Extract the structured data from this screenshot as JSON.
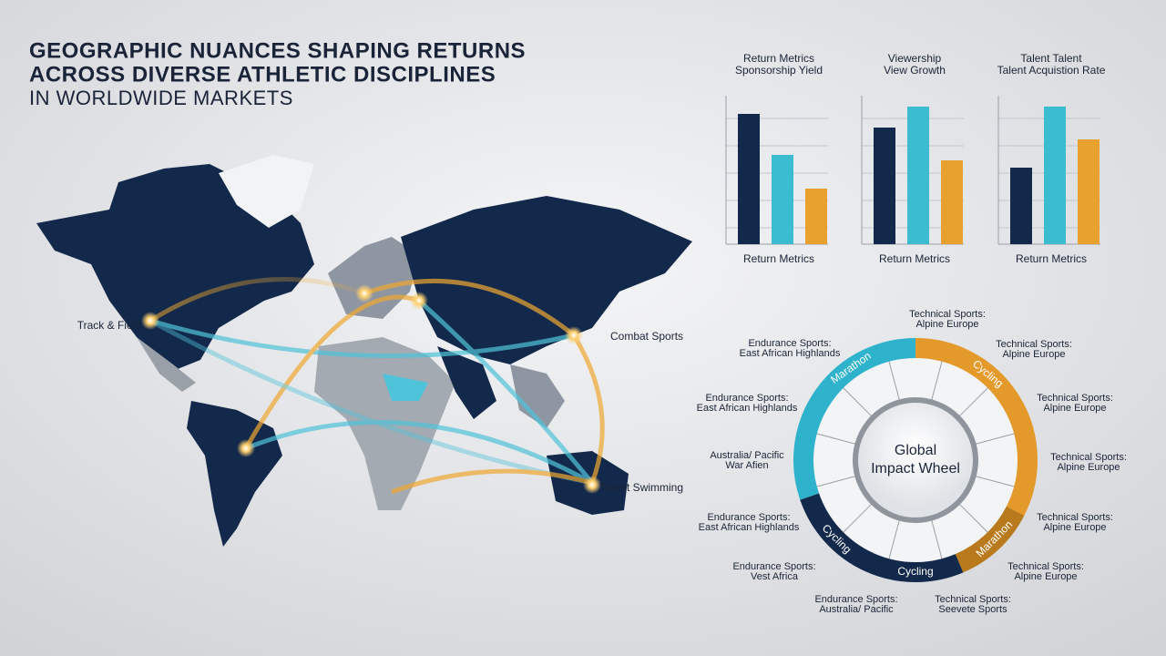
{
  "header": {
    "title_lines": [
      "GEOGRAPHIC NUANCES SHAPING RETURNS",
      "ACROSS DIVERSE ATHLETIC DISCIPLINES",
      "IN WORLDWIDE MARKETS"
    ]
  },
  "map": {
    "hubs": [
      "Track & Field",
      "Combat Sports",
      "Tahert Swimming"
    ]
  },
  "bar_panels": [
    {
      "title_lines": [
        "Return Metrics",
        "Sponsorship Yield"
      ],
      "label": "Return Metrics",
      "values": [
        143,
        98,
        61
      ]
    },
    {
      "title_lines": [
        "Viewership",
        "View Growth"
      ],
      "label": "Return Metrics",
      "values": [
        128,
        151,
        92
      ]
    },
    {
      "title_lines": [
        "Talent Talent",
        "Talent Acquistion Rate"
      ],
      "label": "Return Metrics",
      "values": [
        84,
        151,
        115
      ]
    }
  ],
  "wheel": {
    "center_lines": [
      "Global",
      "Impact Wheel"
    ],
    "ring_labels": [
      "Marathon",
      "Cycling",
      "Marathon",
      "Cycling",
      "Cycling"
    ],
    "callouts": [
      [
        "Technical Sports:",
        "Alpine Europe"
      ],
      [
        "Endurance Sports:",
        "East African Highlands"
      ],
      [
        "Technical Sports:",
        "Alpine Europe"
      ],
      [
        "Endurance Sports:",
        "East African Highlands"
      ],
      [
        "Technical Sports:",
        "Alpine Europe"
      ],
      [
        "Australia/ Pacific",
        "War Afien"
      ],
      [
        "Technical Sports:",
        "Alpine Europe"
      ],
      [
        "Endurance Sports:",
        "East African Highlands"
      ],
      [
        "Technical Sports:",
        "Alpine Europe"
      ],
      [
        "Endurance Sports:",
        "Vest Africa"
      ],
      [
        "Technical Sports:",
        "Alpine Europe"
      ],
      [
        "Endurance Sports:",
        "Australia/ Pacific"
      ],
      [
        "Technical Sports:",
        "Seevete Sports"
      ]
    ]
  }
}
